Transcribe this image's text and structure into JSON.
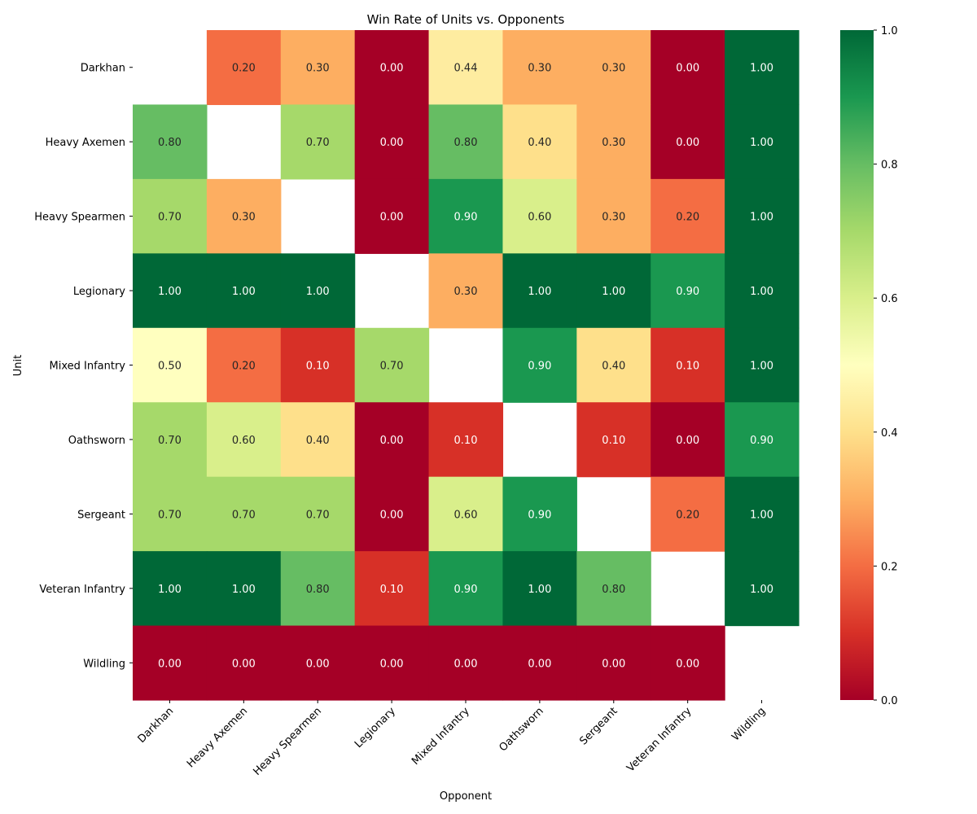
{
  "chart_data": {
    "type": "heatmap",
    "title": "Win Rate of Units vs. Opponents",
    "xlabel": "Opponent",
    "ylabel": "Unit",
    "rows": [
      "Darkhan",
      "Heavy Axemen",
      "Heavy Spearmen",
      "Legionary",
      "Mixed Infantry",
      "Oathsworn",
      "Sergeant",
      "Veteran Infantry",
      "Wildling"
    ],
    "columns": [
      "Darkhan",
      "Heavy Axemen",
      "Heavy Spearmen",
      "Legionary",
      "Mixed Infantry",
      "Oathsworn",
      "Sergeant",
      "Veteran Infantry",
      "Wildling"
    ],
    "values": [
      [
        null,
        0.2,
        0.3,
        0.0,
        0.44,
        0.3,
        0.3,
        0.0,
        1.0
      ],
      [
        0.8,
        null,
        0.7,
        0.0,
        0.8,
        0.4,
        0.3,
        0.0,
        1.0
      ],
      [
        0.7,
        0.3,
        null,
        0.0,
        0.9,
        0.6,
        0.3,
        0.2,
        1.0
      ],
      [
        1.0,
        1.0,
        1.0,
        null,
        0.3,
        1.0,
        1.0,
        0.9,
        1.0
      ],
      [
        0.5,
        0.2,
        0.1,
        0.7,
        null,
        0.9,
        0.4,
        0.1,
        1.0
      ],
      [
        0.7,
        0.6,
        0.4,
        0.0,
        0.1,
        null,
        0.1,
        0.0,
        0.9
      ],
      [
        0.7,
        0.7,
        0.7,
        0.0,
        0.6,
        0.9,
        null,
        0.2,
        1.0
      ],
      [
        1.0,
        1.0,
        0.8,
        0.1,
        0.9,
        1.0,
        0.8,
        null,
        1.0
      ],
      [
        0.0,
        0.0,
        0.0,
        0.0,
        0.0,
        0.0,
        0.0,
        0.0,
        null
      ]
    ],
    "annotation_format": "0.00",
    "colormap": "RdYlGn",
    "vmin": 0.0,
    "vmax": 1.0,
    "colorbar": {
      "position": "right",
      "ticks": [
        0.0,
        0.2,
        0.4,
        0.6,
        0.8,
        1.0
      ],
      "tick_labels": [
        "0.0",
        "0.2",
        "0.4",
        "0.6",
        "0.8",
        "1.0"
      ]
    },
    "xtick_rotation_deg": 45,
    "grid": false
  }
}
